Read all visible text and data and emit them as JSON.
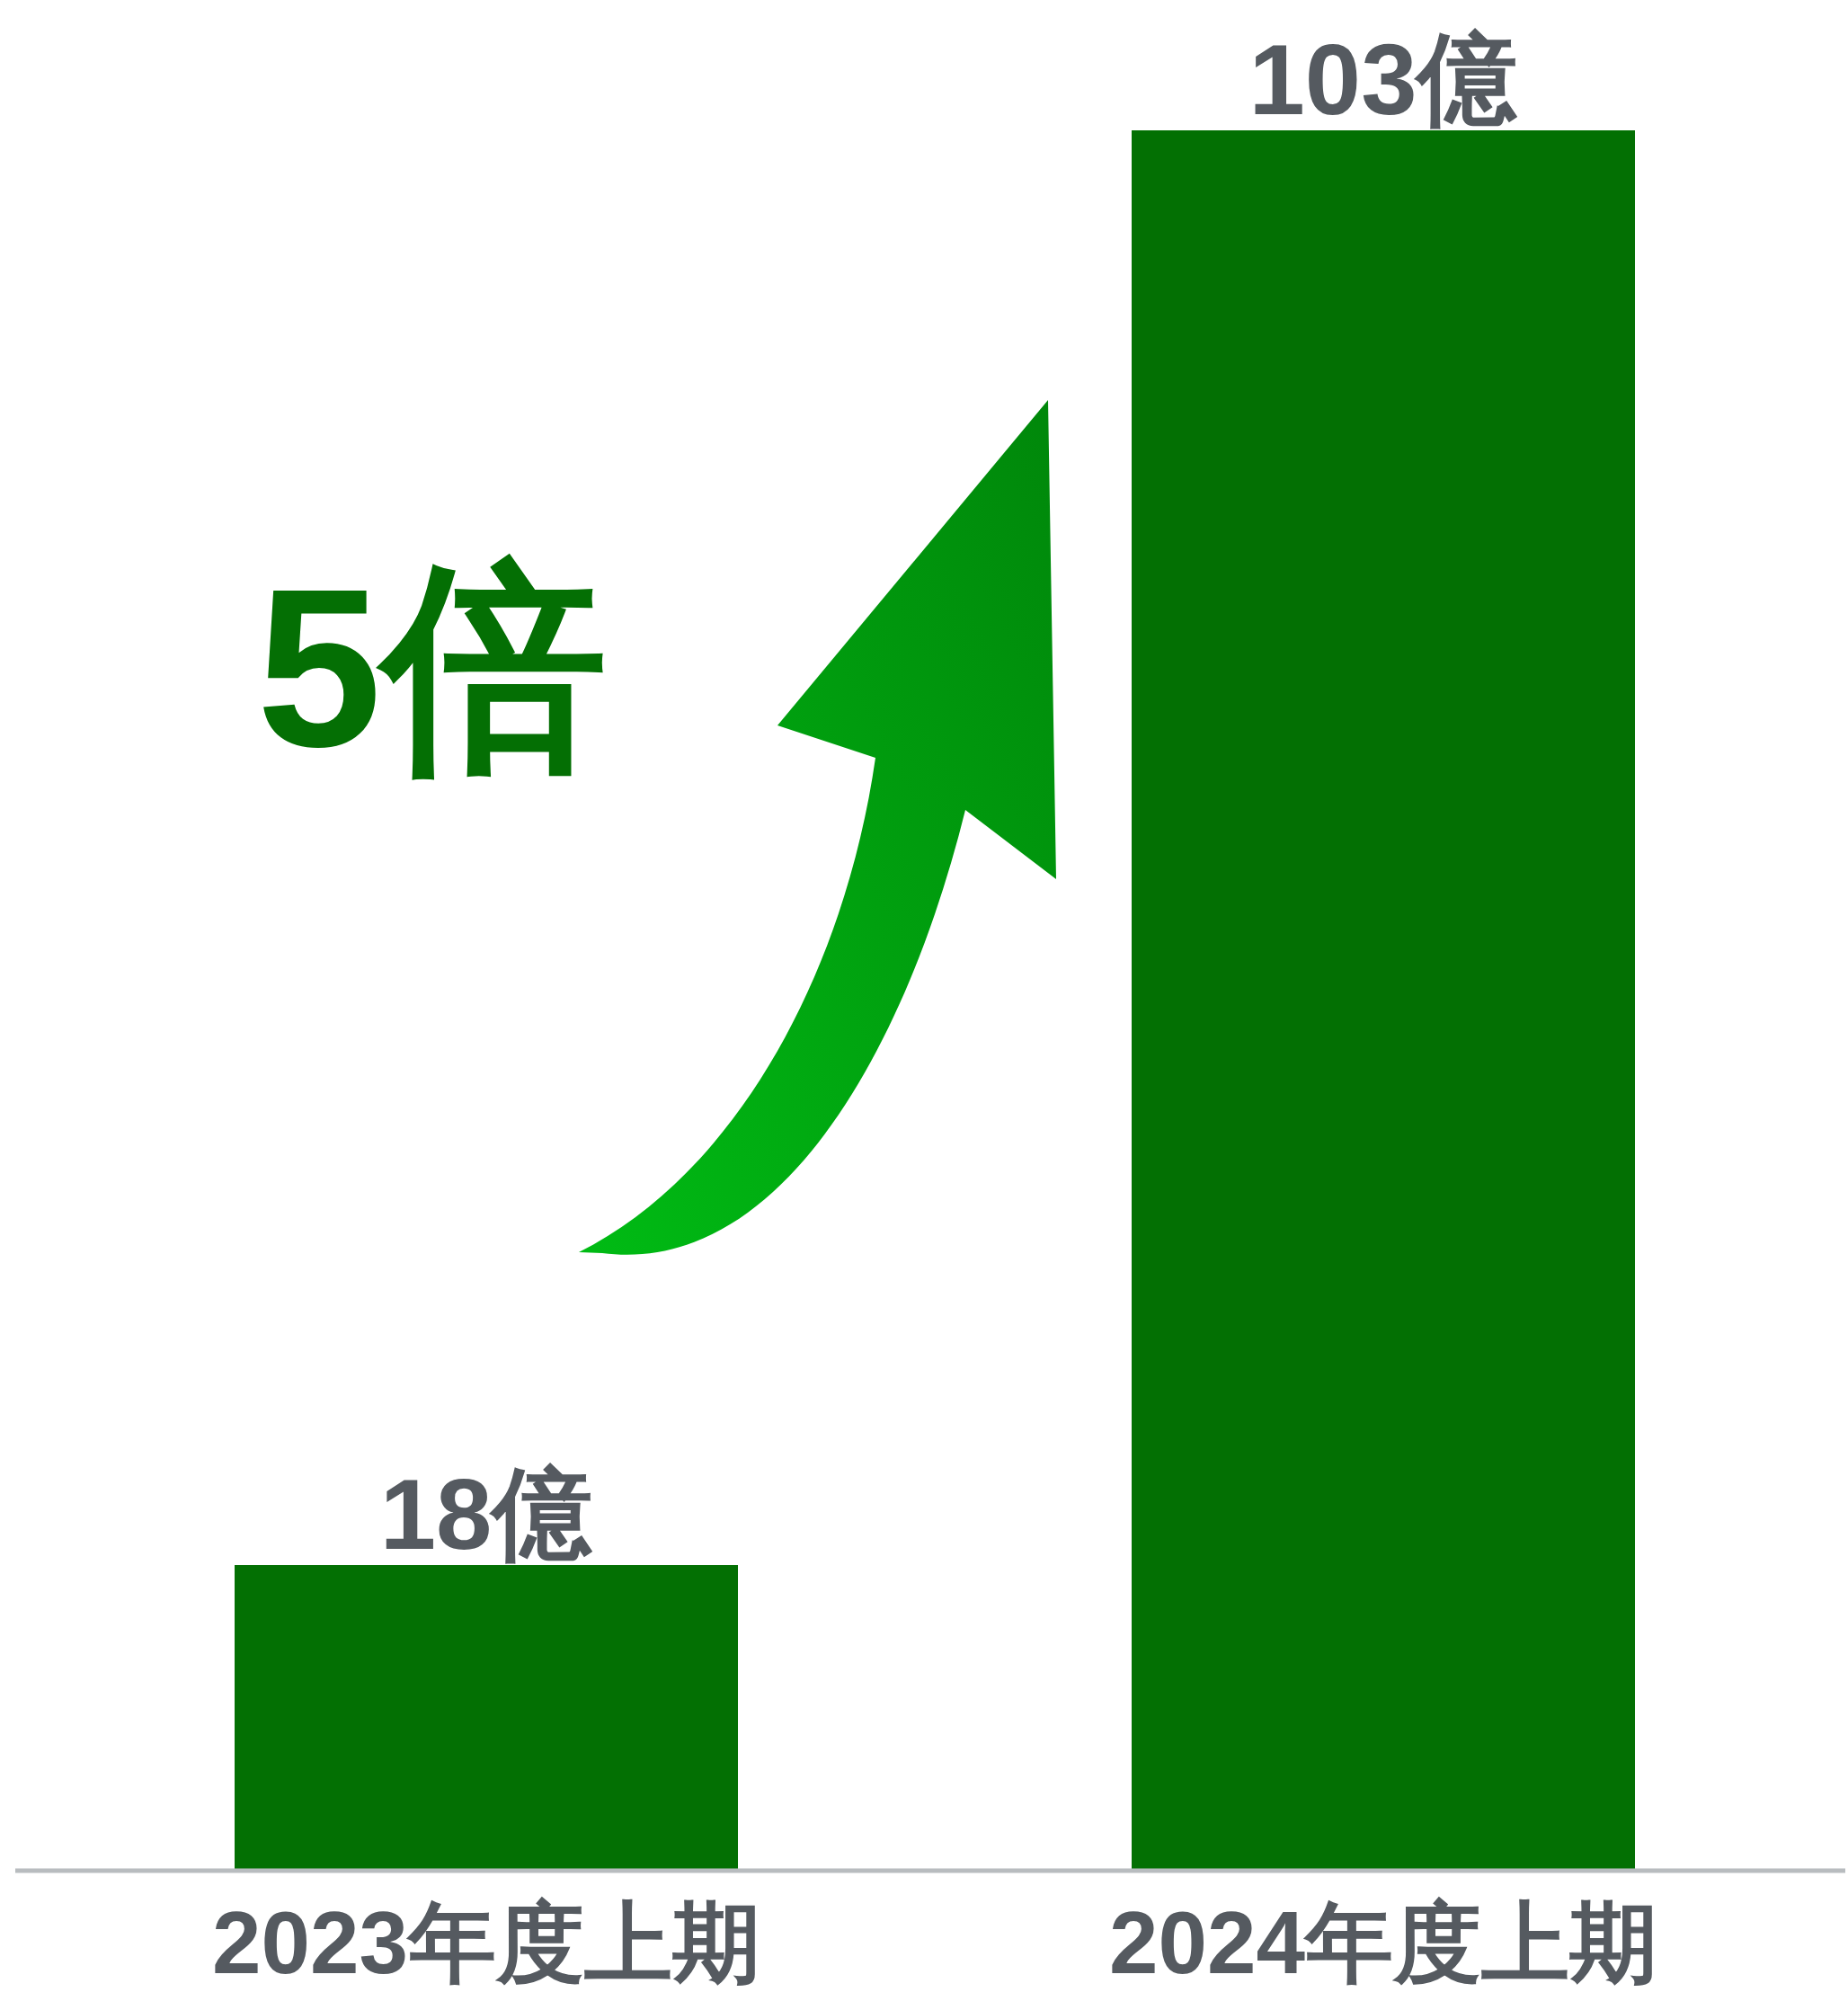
{
  "chart_data": {
    "type": "bar",
    "categories": [
      "2023年度上期",
      "2024年度上期"
    ],
    "values": [
      18,
      103
    ],
    "value_labels": [
      "18億",
      "103億"
    ],
    "color": "#037003",
    "annotations": [
      "5倍"
    ]
  }
}
